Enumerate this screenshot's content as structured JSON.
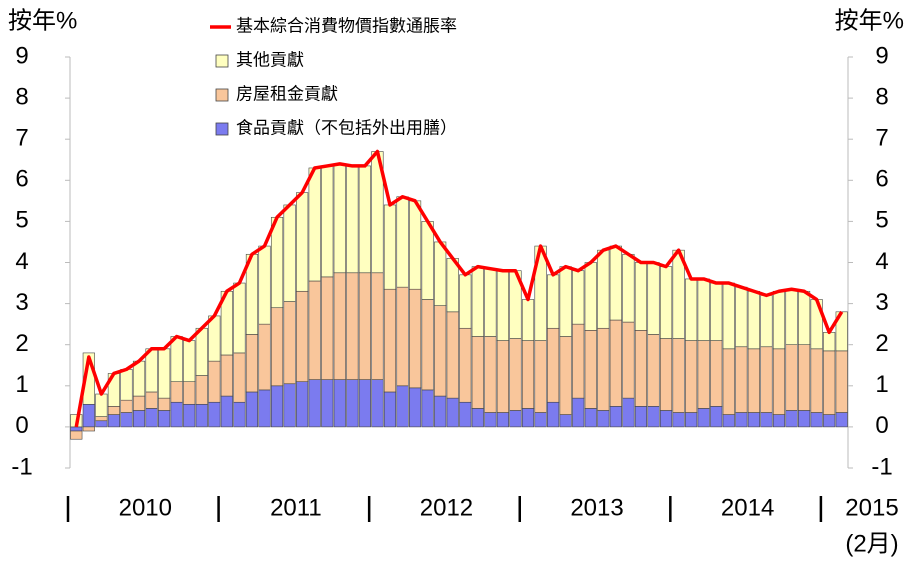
{
  "chart_data": {
    "type": "bar",
    "y_axis_label": "按年%",
    "y2_axis_label": "按年%",
    "ylim": [
      -1,
      9
    ],
    "yticks": [
      -1,
      0,
      1,
      2,
      3,
      4,
      5,
      6,
      7,
      8,
      9
    ],
    "y2lim": [
      -1,
      9
    ],
    "y2ticks": [
      -1,
      0,
      1,
      2,
      3,
      4,
      5,
      6,
      7,
      8,
      9
    ],
    "categories": [
      null,
      null,
      null,
      null,
      null,
      null,
      null,
      null,
      null,
      null,
      null,
      null,
      null,
      null,
      null,
      null,
      null,
      null,
      null,
      null,
      null,
      null,
      null,
      null,
      null,
      null,
      null,
      null,
      null,
      null,
      null,
      null,
      null,
      null,
      null,
      null,
      null,
      null,
      null,
      null,
      null,
      null,
      null,
      null,
      null,
      null,
      null,
      null,
      null,
      null,
      null,
      null,
      null,
      null,
      null,
      null,
      null,
      null,
      null,
      null,
      null,
      null
    ],
    "year_labels": [
      "2010",
      "2011",
      "2012",
      "2013",
      "2014",
      "2015"
    ],
    "year_label_note": "(2月)",
    "series": [
      {
        "name": "基本綜合消費物價指數通脹率",
        "type": "line",
        "color": "#ff0000",
        "values": [
          0.0,
          1.7,
          0.8,
          1.3,
          1.4,
          1.6,
          1.9,
          1.9,
          2.2,
          2.1,
          2.4,
          2.7,
          3.3,
          3.5,
          4.2,
          4.4,
          5.1,
          5.4,
          5.7,
          6.3,
          6.35,
          6.4,
          6.35,
          6.35,
          6.7,
          5.4,
          5.6,
          5.5,
          5.0,
          4.5,
          4.1,
          3.7,
          3.9,
          3.85,
          3.8,
          3.8,
          3.1,
          4.4,
          3.7,
          3.9,
          3.8,
          4.0,
          4.3,
          4.4,
          4.2,
          4.0,
          4.0,
          3.9,
          4.3,
          3.6,
          3.6,
          3.5,
          3.5,
          3.4,
          3.3,
          3.2,
          3.3,
          3.35,
          3.3,
          3.1,
          2.3,
          2.8
        ]
      },
      {
        "name": "其他貢獻",
        "type": "bar",
        "color": "#ffffc0",
        "values": [
          0.3,
          1.25,
          0.55,
          0.8,
          0.75,
          0.85,
          1.05,
          1.2,
          1.1,
          1.0,
          1.15,
          1.1,
          1.55,
          1.7,
          1.95,
          1.9,
          2.2,
          2.35,
          2.4,
          2.75,
          2.7,
          2.65,
          2.6,
          2.6,
          2.95,
          2.05,
          2.2,
          2.15,
          1.9,
          1.55,
          1.3,
          1.3,
          1.7,
          1.65,
          1.7,
          1.65,
          1.0,
          2.3,
          1.3,
          1.7,
          1.3,
          1.65,
          1.9,
          1.8,
          1.65,
          1.65,
          1.75,
          1.75,
          2.15,
          1.5,
          1.5,
          1.4,
          1.6,
          1.45,
          1.4,
          1.25,
          1.4,
          1.35,
          1.3,
          1.2,
          0.45,
          0.95
        ]
      },
      {
        "name": "房屋租金貢獻",
        "type": "bar",
        "color": "#f9c69b",
        "values": [
          -0.2,
          -0.1,
          0.1,
          0.2,
          0.3,
          0.35,
          0.4,
          0.3,
          0.5,
          0.55,
          0.7,
          1.0,
          1.0,
          1.2,
          1.4,
          1.6,
          1.9,
          2.0,
          2.2,
          2.4,
          2.5,
          2.6,
          2.6,
          2.6,
          2.6,
          2.5,
          2.4,
          2.4,
          2.2,
          2.2,
          2.1,
          1.8,
          1.75,
          1.85,
          1.75,
          1.75,
          1.65,
          1.75,
          1.8,
          1.9,
          1.8,
          1.9,
          2.0,
          2.1,
          1.85,
          1.85,
          1.75,
          1.75,
          1.8,
          1.75,
          1.65,
          1.6,
          1.6,
          1.6,
          1.55,
          1.6,
          1.6,
          1.6,
          1.6,
          1.55,
          1.55,
          1.5
        ]
      },
      {
        "name": "食品貢獻（不包括外出用膳）",
        "type": "bar",
        "color": "#7b7bef",
        "values": [
          -0.1,
          0.55,
          0.15,
          0.3,
          0.35,
          0.4,
          0.45,
          0.4,
          0.6,
          0.55,
          0.55,
          0.6,
          0.75,
          0.6,
          0.85,
          0.9,
          1.0,
          1.05,
          1.1,
          1.15,
          1.15,
          1.15,
          1.15,
          1.15,
          1.15,
          0.85,
          1.0,
          0.95,
          0.9,
          0.75,
          0.7,
          0.6,
          0.45,
          0.35,
          0.35,
          0.4,
          0.45,
          0.35,
          0.6,
          0.3,
          0.7,
          0.45,
          0.4,
          0.5,
          0.7,
          0.5,
          0.5,
          0.4,
          0.35,
          0.35,
          0.45,
          0.5,
          0.3,
          0.35,
          0.35,
          0.35,
          0.3,
          0.4,
          0.4,
          0.35,
          0.3,
          0.35
        ]
      }
    ]
  }
}
